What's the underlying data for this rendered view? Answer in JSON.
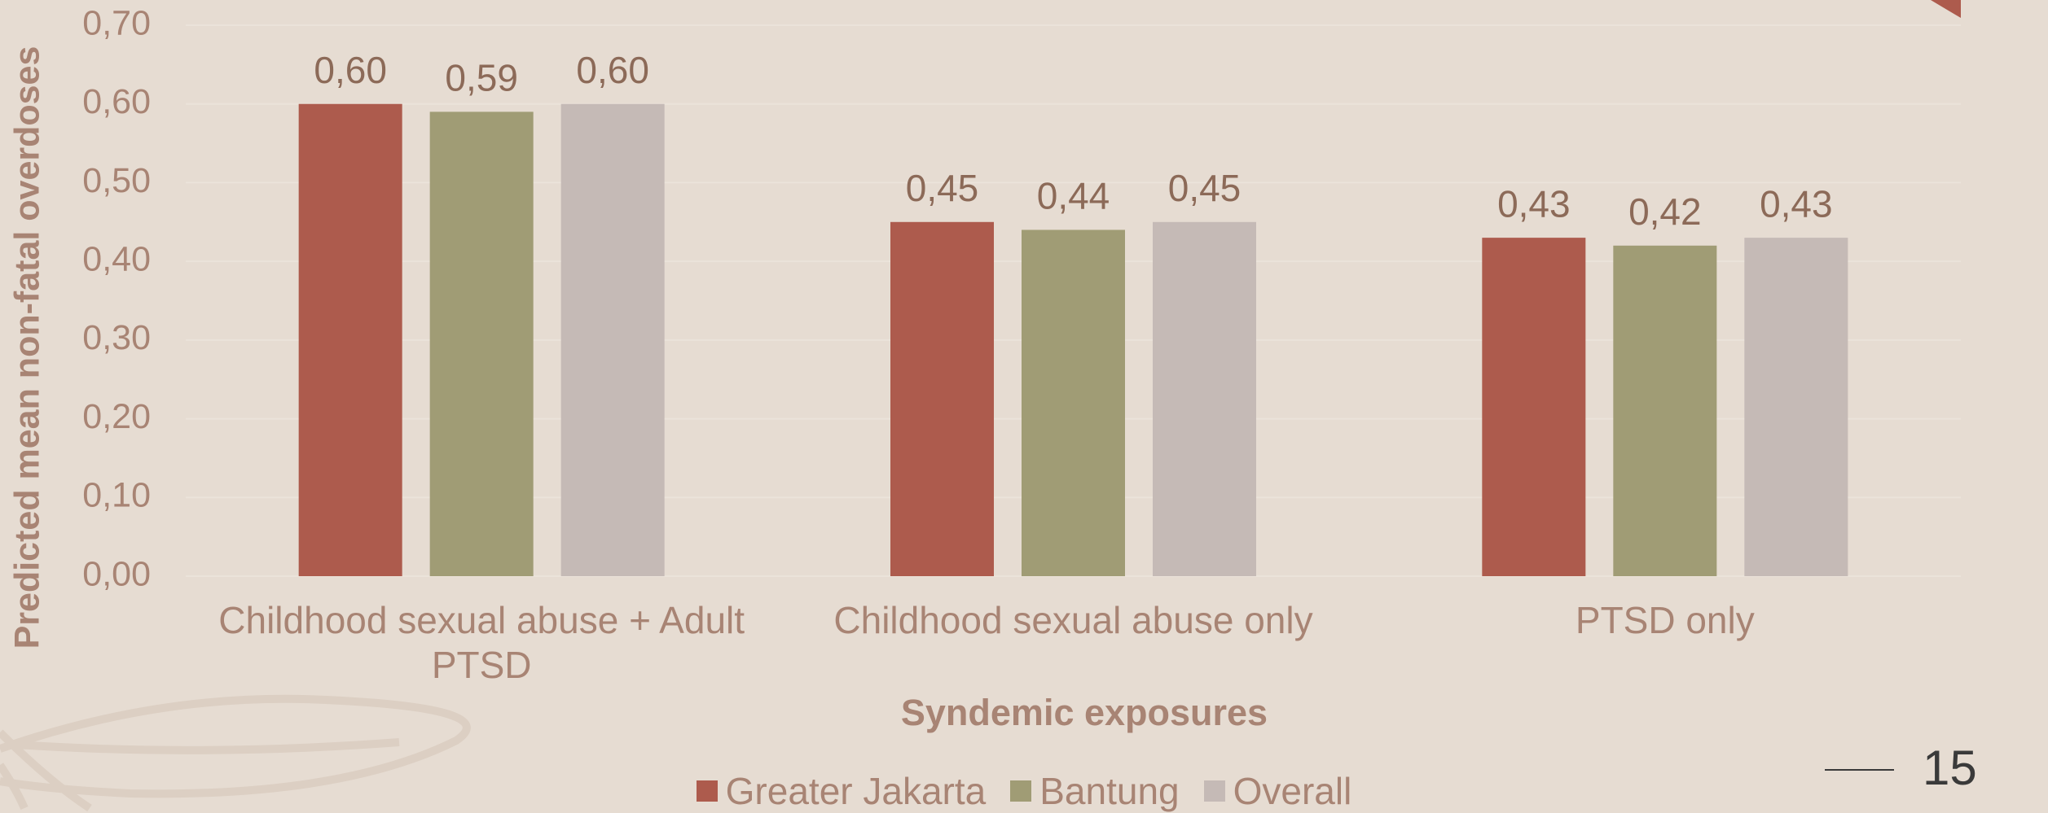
{
  "chart_data": {
    "type": "bar",
    "categories": [
      "Childhood sexual abuse + Adult PTSD",
      "Childhood sexual abuse only",
      "PTSD only"
    ],
    "series": [
      {
        "name": "Greater Jakarta",
        "color": "#ad5b4d",
        "values": [
          0.6,
          0.45,
          0.43
        ],
        "value_labels": [
          "0,60",
          "0,45",
          "0,43"
        ]
      },
      {
        "name": "Bantung",
        "color": "#a09c75",
        "values": [
          0.59,
          0.44,
          0.42
        ],
        "value_labels": [
          "0,59",
          "0,44",
          "0,42"
        ]
      },
      {
        "name": "Overall",
        "color": "#c5bab6",
        "values": [
          0.6,
          0.45,
          0.43
        ],
        "value_labels": [
          "0,60",
          "0,45",
          "0,43"
        ]
      }
    ],
    "x_label": "Syndemic exposures",
    "y_label": "Predicted mean non-fatal overdoses",
    "ylim": [
      0,
      0.7
    ],
    "yticks": [
      {
        "value": 0,
        "label": "0,00"
      },
      {
        "value": 0.1,
        "label": "0,10"
      },
      {
        "value": 0.2,
        "label": "0,20"
      },
      {
        "value": 0.3,
        "label": "0,30"
      },
      {
        "value": 0.4,
        "label": "0,40"
      },
      {
        "value": 0.5,
        "label": "0,50"
      },
      {
        "value": 0.6,
        "label": "0,60"
      },
      {
        "value": 0.7,
        "label": "0,70"
      }
    ],
    "grid": true,
    "legend": "bottom"
  },
  "slide_number": "15"
}
